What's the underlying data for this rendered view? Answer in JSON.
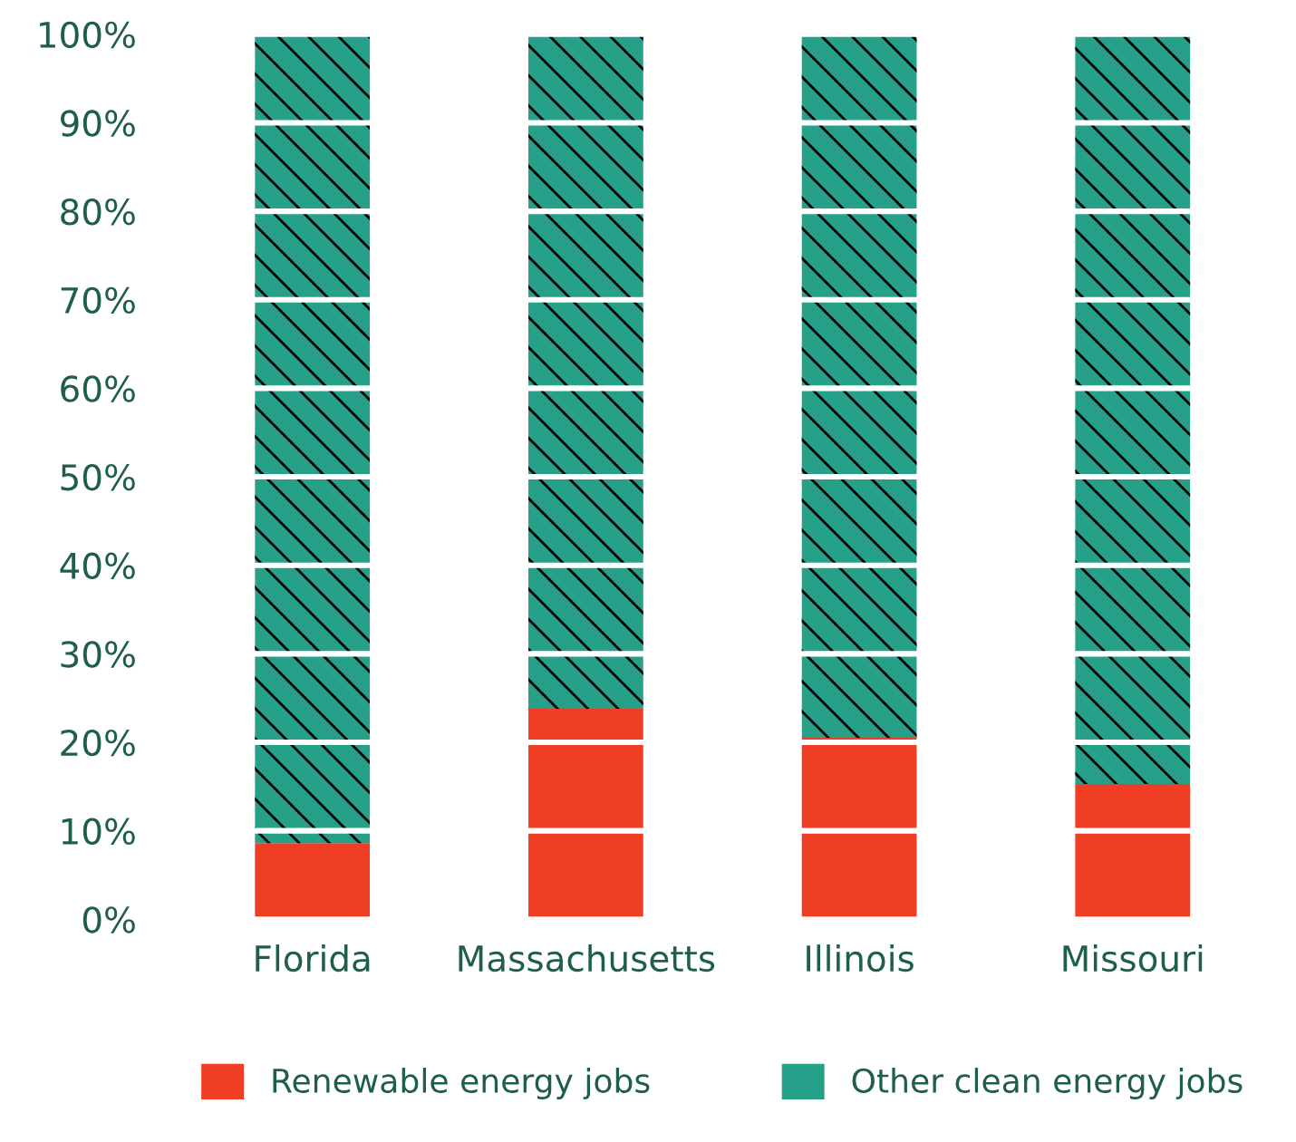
{
  "chart_data": {
    "type": "bar",
    "stacked": true,
    "categories": [
      "Florida",
      "Massachusetts",
      "Illinois",
      "Missouri"
    ],
    "series": [
      {
        "name": "Renewable energy jobs",
        "color": "#f03e24",
        "values": [
          8.6,
          23.8,
          20.5,
          15.3
        ]
      },
      {
        "name": "Other clean energy jobs",
        "color": "#27a08a",
        "values": [
          91.4,
          76.2,
          79.5,
          84.7
        ]
      }
    ],
    "ylim": [
      0,
      100
    ],
    "yticks": [
      {
        "value": 0,
        "label": "0%"
      },
      {
        "value": 10,
        "label": "10%"
      },
      {
        "value": 20,
        "label": "20%"
      },
      {
        "value": 30,
        "label": "30%"
      },
      {
        "value": 40,
        "label": "40%"
      },
      {
        "value": 50,
        "label": "50%"
      },
      {
        "value": 60,
        "label": "60%"
      },
      {
        "value": 70,
        "label": "70%"
      },
      {
        "value": 80,
        "label": "80%"
      },
      {
        "value": 90,
        "label": "90%"
      },
      {
        "value": 100,
        "label": "100%"
      }
    ],
    "grid": "y",
    "legend": "bottom"
  }
}
